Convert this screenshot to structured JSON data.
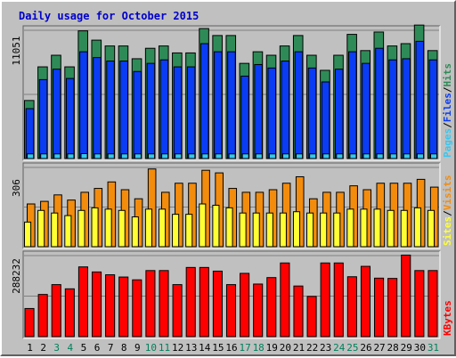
{
  "chart_data": {
    "type": "bar",
    "title": "Daily usage for October 2015",
    "categories": [
      "1",
      "2",
      "3",
      "4",
      "5",
      "6",
      "7",
      "8",
      "9",
      "10",
      "11",
      "12",
      "13",
      "14",
      "15",
      "16",
      "17",
      "18",
      "19",
      "20",
      "21",
      "22",
      "23",
      "24",
      "25",
      "26",
      "27",
      "28",
      "29",
      "30",
      "31"
    ],
    "weekend_days": [
      "3",
      "4",
      "10",
      "11",
      "17",
      "18",
      "24",
      "25",
      "31"
    ],
    "panels": [
      {
        "id": "hits-files-pages",
        "y_tick_label": "11051",
        "ymax": 11051,
        "legend": [
          "Pages",
          "/",
          "Files",
          "/",
          "Hits"
        ],
        "series": [
          {
            "name": "Hits",
            "color": "#2e8b57",
            "values": [
              5000,
              7900,
              8900,
              7900,
              11000,
              10200,
              9700,
              9700,
              8600,
              9500,
              9700,
              9100,
              9100,
              11200,
              10600,
              10600,
              8200,
              9200,
              8900,
              9700,
              10600,
              8900,
              7600,
              8900,
              10700,
              9300,
              10900,
              9700,
              9900,
              11500,
              9300
            ]
          },
          {
            "name": "Files",
            "color": "#0a3cf4",
            "values": [
              4300,
              6800,
              7700,
              6900,
              9200,
              8700,
              8400,
              8400,
              7500,
              8200,
              8500,
              7900,
              7900,
              9900,
              9200,
              9200,
              7100,
              8100,
              7800,
              8400,
              9200,
              7800,
              6600,
              7700,
              9200,
              8200,
              9500,
              8500,
              8600,
              10100,
              8500
            ]
          },
          {
            "name": "Pages",
            "color": "#34c8f2",
            "values": [
              400,
              400,
              400,
              400,
              420,
              400,
              400,
              400,
              400,
              400,
              400,
              400,
              400,
              400,
              400,
              400,
              400,
              400,
              400,
              400,
              400,
              400,
              400,
              400,
              400,
              400,
              400,
              400,
              400,
              400,
              400
            ]
          }
        ]
      },
      {
        "id": "visits-sites",
        "y_tick_label": "306",
        "ymax": 306,
        "legend": [
          "Sites",
          "/",
          "Visits"
        ],
        "series": [
          {
            "name": "Visits",
            "color": "#f38c0d",
            "values": [
              165,
              175,
              200,
              180,
              210,
              225,
              250,
              220,
              185,
              300,
              210,
              245,
              245,
              295,
              285,
              225,
              210,
              210,
              220,
              245,
              270,
              185,
              210,
              210,
              235,
              220,
              245,
              245,
              245,
              260,
              230
            ]
          },
          {
            "name": "Sites",
            "color": "#ffff33",
            "values": [
              95,
              140,
              130,
              120,
              140,
              150,
              145,
              140,
              115,
              145,
              145,
              125,
              125,
              165,
              160,
              150,
              130,
              130,
              130,
              130,
              135,
              130,
              130,
              130,
              145,
              145,
              145,
              140,
              140,
              150,
              140
            ]
          }
        ]
      },
      {
        "id": "kbytes",
        "y_tick_label": "288232",
        "ymax": 288232,
        "legend": [
          "KBytes"
        ],
        "series": [
          {
            "name": "KBytes",
            "color": "#ff0000",
            "values": [
              100000,
              150000,
              185000,
              170000,
              248000,
              230000,
              220000,
              212000,
              202000,
              235000,
              235000,
              185000,
              246000,
              246000,
              233000,
              185000,
              225000,
              187000,
              210000,
              262000,
              180000,
              143000,
              262000,
              262000,
              213000,
              250000,
              208000,
              207000,
              290000,
              235000,
              235000
            ]
          }
        ]
      }
    ]
  }
}
